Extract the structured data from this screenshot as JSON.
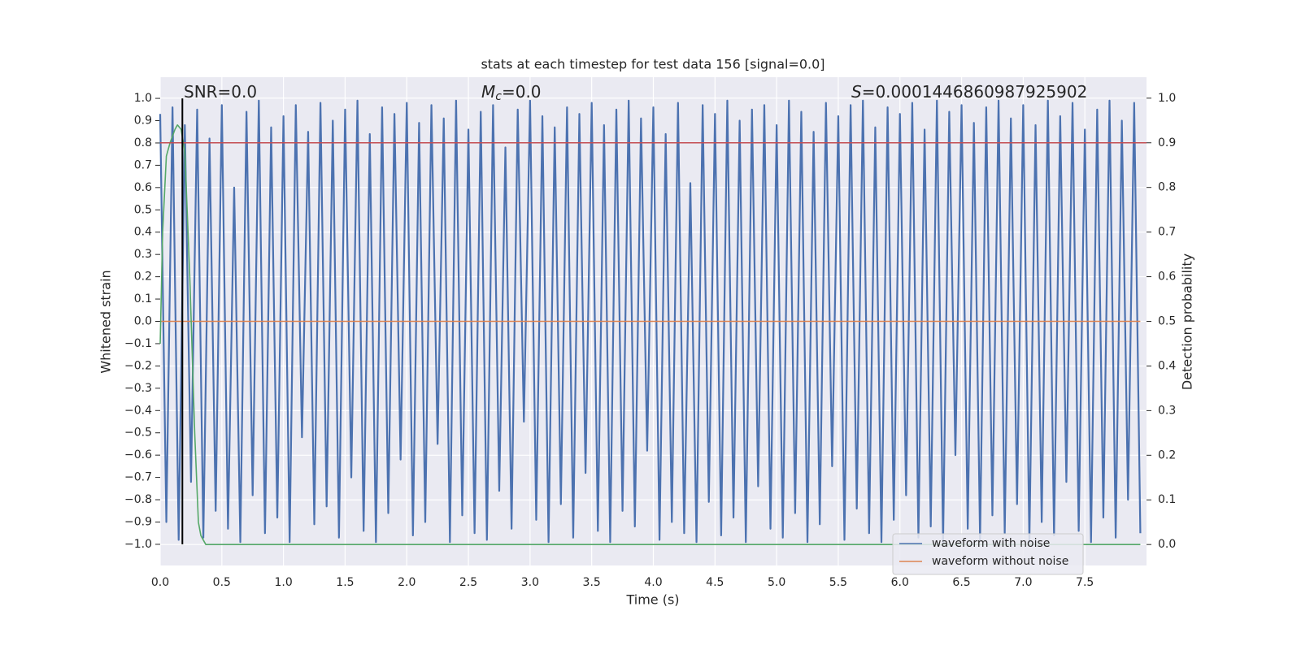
{
  "chart_data": {
    "type": "line",
    "title": "stats at each timestep for test data 156 [signal=0.0]",
    "x_label": "Time (s)",
    "y_label": "Whitened strain",
    "y2_label": "Detection probability",
    "annotations": [
      {
        "text": "SNR=0.0"
      },
      {
        "text": "M",
        "sub": "c",
        "rest": "=0.0"
      },
      {
        "text": "S",
        "rest": "=0.0001446860987925902"
      }
    ],
    "xlim": [
      0,
      8.0
    ],
    "ylim": [
      -1.095,
      1.095
    ],
    "y2lim": [
      -0.047,
      1.047
    ],
    "grid": true,
    "legend": "lower right",
    "xticks": [
      {
        "value": 0,
        "label": "0.0"
      },
      {
        "value": 0.5,
        "label": "0.5"
      },
      {
        "value": 1,
        "label": "1.0"
      },
      {
        "value": 1.5,
        "label": "1.5"
      },
      {
        "value": 2,
        "label": "2.0"
      },
      {
        "value": 2.5,
        "label": "2.5"
      },
      {
        "value": 3,
        "label": "3.0"
      },
      {
        "value": 3.5,
        "label": "3.5"
      },
      {
        "value": 4,
        "label": "4.0"
      },
      {
        "value": 4.5,
        "label": "4.5"
      },
      {
        "value": 5,
        "label": "5.0"
      },
      {
        "value": 5.5,
        "label": "5.5"
      },
      {
        "value": 6,
        "label": "6.0"
      },
      {
        "value": 6.5,
        "label": "6.5"
      },
      {
        "value": 7,
        "label": "7.0"
      },
      {
        "value": 7.5,
        "label": "7.5"
      }
    ],
    "yticks": [
      {
        "value": -1,
        "label": "−1.0"
      },
      {
        "value": -0.9,
        "label": "−0.9"
      },
      {
        "value": -0.8,
        "label": "−0.8"
      },
      {
        "value": -0.7,
        "label": "−0.7"
      },
      {
        "value": -0.6,
        "label": "−0.6"
      },
      {
        "value": -0.5,
        "label": "−0.5"
      },
      {
        "value": -0.4,
        "label": "−0.4"
      },
      {
        "value": -0.3,
        "label": "−0.3"
      },
      {
        "value": -0.2,
        "label": "−0.2"
      },
      {
        "value": -0.1,
        "label": "−0.1"
      },
      {
        "value": 0,
        "label": "0.0"
      },
      {
        "value": 0.1,
        "label": "0.1"
      },
      {
        "value": 0.2,
        "label": "0.2"
      },
      {
        "value": 0.3,
        "label": "0.3"
      },
      {
        "value": 0.4,
        "label": "0.4"
      },
      {
        "value": 0.5,
        "label": "0.5"
      },
      {
        "value": 0.6,
        "label": "0.6"
      },
      {
        "value": 0.7,
        "label": "0.7"
      },
      {
        "value": 0.8,
        "label": "0.8"
      },
      {
        "value": 0.9,
        "label": "0.9"
      },
      {
        "value": 1,
        "label": "1.0"
      }
    ],
    "y2ticks": [
      {
        "value": 0,
        "label": "0.0"
      },
      {
        "value": 0.1,
        "label": "0.1"
      },
      {
        "value": 0.2,
        "label": "0.2"
      },
      {
        "value": 0.3,
        "label": "0.3"
      },
      {
        "value": 0.4,
        "label": "0.4"
      },
      {
        "value": 0.5,
        "label": "0.5"
      },
      {
        "value": 0.6,
        "label": "0.6"
      },
      {
        "value": 0.7,
        "label": "0.7"
      },
      {
        "value": 0.8,
        "label": "0.8"
      },
      {
        "value": 0.9,
        "label": "0.9"
      },
      {
        "value": 1,
        "label": "1.0"
      }
    ],
    "series": [
      {
        "name": "waveform with noise",
        "color": "#4c72b0",
        "x": [
          0,
          0.05,
          0.1,
          0.15,
          0.2,
          0.25,
          0.3,
          0.35,
          0.4,
          0.45,
          0.5,
          0.55,
          0.6,
          0.65,
          0.7,
          0.75,
          0.8,
          0.85,
          0.9,
          0.95,
          1,
          1.05,
          1.1,
          1.15,
          1.2,
          1.25,
          1.3,
          1.35,
          1.4,
          1.45,
          1.5,
          1.55,
          1.6,
          1.65,
          1.7,
          1.75,
          1.8,
          1.85,
          1.9,
          1.95,
          2,
          2.05,
          2.1,
          2.15,
          2.2,
          2.25,
          2.3,
          2.35,
          2.4,
          2.45,
          2.5,
          2.55,
          2.6,
          2.65,
          2.7,
          2.75,
          2.8,
          2.85,
          2.9,
          2.95,
          3,
          3.05,
          3.1,
          3.15,
          3.2,
          3.25,
          3.3,
          3.35,
          3.4,
          3.45,
          3.5,
          3.55,
          3.6,
          3.65,
          3.7,
          3.75,
          3.8,
          3.85,
          3.9,
          3.95,
          4,
          4.05,
          4.1,
          4.15,
          4.2,
          4.25,
          4.3,
          4.35,
          4.4,
          4.45,
          4.5,
          4.55,
          4.6,
          4.65,
          4.7,
          4.75,
          4.8,
          4.85,
          4.9,
          4.95,
          5,
          5.05,
          5.1,
          5.15,
          5.2,
          5.25,
          5.3,
          5.35,
          5.4,
          5.45,
          5.5,
          5.55,
          5.6,
          5.65,
          5.7,
          5.75,
          5.8,
          5.85,
          5.9,
          5.95,
          6,
          6.05,
          6.1,
          6.15,
          6.2,
          6.25,
          6.3,
          6.35,
          6.4,
          6.45,
          6.5,
          6.55,
          6.6,
          6.65,
          6.7,
          6.75,
          6.8,
          6.85,
          6.9,
          6.95,
          7,
          7.05,
          7.1,
          7.15,
          7.2,
          7.25,
          7.3,
          7.35,
          7.4,
          7.45,
          7.5,
          7.55,
          7.6,
          7.65,
          7.7,
          7.75,
          7.8,
          7.85,
          7.9,
          7.95
        ],
        "values": [
          0.93,
          -0.9,
          0.96,
          -0.98,
          0.88,
          -0.72,
          0.95,
          -0.97,
          0.82,
          -0.85,
          0.97,
          -0.93,
          0.6,
          -0.99,
          0.94,
          -0.78,
          0.99,
          -0.95,
          0.87,
          -0.88,
          0.92,
          -0.99,
          0.97,
          -0.52,
          0.85,
          -0.91,
          0.98,
          -0.83,
          0.9,
          -0.97,
          0.95,
          -0.7,
          0.99,
          -0.94,
          0.84,
          -0.99,
          0.96,
          -0.86,
          0.93,
          -0.62,
          0.98,
          -0.96,
          0.89,
          -0.9,
          0.97,
          -0.55,
          0.91,
          -0.99,
          0.99,
          -0.87,
          0.86,
          -0.95,
          0.94,
          -0.98,
          0.97,
          -0.76,
          0.78,
          -0.93,
          0.95,
          -0.45,
          0.99,
          -0.89,
          0.92,
          -0.99,
          0.87,
          -0.82,
          0.96,
          -0.97,
          0.93,
          -0.68,
          0.98,
          -0.94,
          0.88,
          -0.99,
          0.95,
          -0.85,
          0.99,
          -0.92,
          0.91,
          -0.58,
          0.96,
          -0.98,
          0.84,
          -0.9,
          0.98,
          -0.95,
          0.62,
          -0.99,
          0.97,
          -0.81,
          0.93,
          -0.96,
          0.99,
          -0.88,
          0.9,
          -0.99,
          0.95,
          -0.74,
          0.97,
          -0.93,
          0.88,
          -0.97,
          0.99,
          -0.86,
          0.94,
          -0.99,
          0.85,
          -0.91,
          0.98,
          -0.65,
          0.92,
          -0.98,
          0.97,
          -0.84,
          0.99,
          -0.95,
          0.87,
          -0.99,
          0.96,
          -0.89,
          0.93,
          -0.78,
          0.98,
          -0.97,
          0.86,
          -0.92,
          0.99,
          -0.99,
          0.94,
          -0.6,
          0.97,
          -0.93,
          0.89,
          -0.98,
          0.96,
          -0.87,
          0.99,
          -0.95,
          0.91,
          -0.82,
          0.97,
          -0.99,
          0.88,
          -0.9,
          0.99,
          -0.96,
          0.92,
          -0.72,
          0.98,
          -0.94,
          0.86,
          -0.99,
          0.95,
          -0.88,
          0.99,
          -0.97,
          0.9,
          -0.8,
          0.98,
          -0.95
        ]
      },
      {
        "name": "waveform without noise",
        "color": "#dd8452",
        "x": [
          0,
          7.95
        ],
        "values": [
          0,
          0
        ]
      },
      {
        "color": "#55a868",
        "axis": "y2",
        "x": [
          0,
          0.02,
          0.05,
          0.08,
          0.12,
          0.14,
          0.17,
          0.2,
          0.24,
          0.28,
          0.31,
          0.33,
          0.37,
          1,
          2,
          3,
          4,
          5,
          6,
          7,
          7.95
        ],
        "values": [
          0.45,
          0.7,
          0.87,
          0.9,
          0.93,
          0.94,
          0.93,
          0.88,
          0.6,
          0.25,
          0.05,
          0.02,
          0,
          0,
          0,
          0,
          0,
          0,
          0,
          0,
          0
        ]
      }
    ],
    "threshold": {
      "value": 0.9,
      "axis": "y2",
      "color": "#c44e52"
    },
    "vline": {
      "x": 0.18,
      "color": "#000000"
    }
  }
}
